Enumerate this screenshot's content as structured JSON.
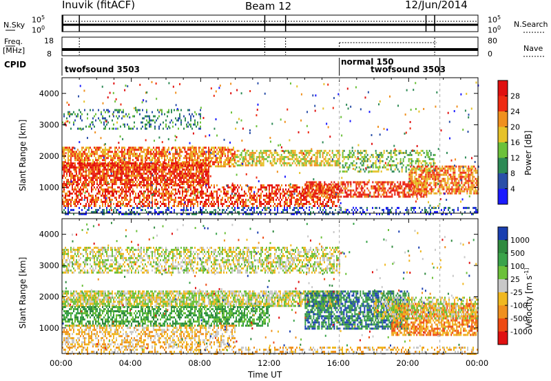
{
  "header": {
    "station": "Inuvik (fitACF)",
    "beam": "Beam 12",
    "date": "12/Jun/2014"
  },
  "top_panels": {
    "nsky_label": "N.Sky",
    "nsky_ticks": [
      "10^5",
      "10^0"
    ],
    "nsearch_label": "N.Search",
    "nsearch_ticks": [
      "10^5",
      "10^0"
    ],
    "freq_label": "Freq.",
    "freq_unit": "[MHz]",
    "freq_ticks": [
      "18",
      "8"
    ],
    "nave_label": "Nave",
    "nave_ticks": [
      "80",
      "0"
    ],
    "cpid_label": "CPID",
    "cpid_segments": [
      {
        "label": "twofsound 3503",
        "start_hour": 0,
        "end_hour": 16
      },
      {
        "label": "normal 150",
        "start_hour": 16,
        "end_hour": 21.8
      },
      {
        "label": "twofsound 3503",
        "start_hour": 21.8,
        "end_hour": 24
      }
    ]
  },
  "x_axis": {
    "label": "Time UT",
    "tick_labels": [
      "00:00",
      "04:00",
      "08:00",
      "12:00",
      "16:00",
      "20:00",
      "00:00"
    ]
  },
  "power_panel": {
    "ylabel": "Slant Range [km]",
    "ytick_labels": [
      "1000",
      "2000",
      "3000",
      "4000"
    ],
    "colorbar_label": "Power [dB]",
    "colorbar_ticks": [
      "4",
      "8",
      "12",
      "16",
      "20",
      "24",
      "28"
    ],
    "colors": [
      "#1a1aff",
      "#2a4fa8",
      "#2d8a55",
      "#6cc13a",
      "#e6c229",
      "#f0901e",
      "#ee2a12",
      "#e01010"
    ]
  },
  "velocity_panel": {
    "ylabel": "Slant Range [km]",
    "ytick_labels": [
      "1000",
      "2000",
      "3000",
      "4000"
    ],
    "colorbar_label": "Velocity [m s^-1]",
    "colorbar_ticks": [
      "1000",
      "500",
      "100",
      "25",
      "-25",
      "-100",
      "-500",
      "-1000"
    ],
    "colors": [
      "#1a3fb0",
      "#2f8a3f",
      "#3aa34a",
      "#6cc13a",
      "#c8c8c8",
      "#f0b820",
      "#f0901e",
      "#ee4a12",
      "#e01010"
    ]
  },
  "chart_data": {
    "type": "heatmap",
    "x_range_hours": [
      0,
      24
    ],
    "y_range_km": [
      180,
      4500
    ],
    "power_scatter_bands": [
      {
        "t_start": 0.0,
        "t_end": 8.0,
        "r_low": 2900,
        "r_high": 3500,
        "density": 0.25,
        "level": 2
      },
      {
        "t_start": 0.0,
        "t_end": 10.0,
        "r_low": 1700,
        "r_high": 2300,
        "density": 0.7,
        "level": 5
      },
      {
        "t_start": 0.0,
        "t_end": 8.5,
        "r_low": 1100,
        "r_high": 1800,
        "density": 0.8,
        "level": 6
      },
      {
        "t_start": 0.0,
        "t_end": 16.0,
        "r_low": 400,
        "r_high": 1100,
        "density": 0.55,
        "level": 6
      },
      {
        "t_start": 10.0,
        "t_end": 16.0,
        "r_low": 1700,
        "r_high": 2200,
        "density": 0.6,
        "level": 4
      },
      {
        "t_start": 14.0,
        "t_end": 21.0,
        "r_low": 700,
        "r_high": 1200,
        "density": 0.6,
        "level": 6
      },
      {
        "t_start": 16.0,
        "t_end": 21.5,
        "r_low": 1500,
        "r_high": 2200,
        "density": 0.4,
        "level": 3
      },
      {
        "t_start": 20.0,
        "t_end": 24.0,
        "r_low": 800,
        "r_high": 1700,
        "density": 0.7,
        "level": 5
      },
      {
        "t_start": 0.0,
        "t_end": 24.0,
        "r_low": 180,
        "r_high": 380,
        "density": 0.35,
        "level": 1
      }
    ],
    "velocity_scatter_bands": [
      {
        "t_start": 0.0,
        "t_end": 16.0,
        "r_low": 2800,
        "r_high": 3600,
        "density": 0.55,
        "level": 4
      },
      {
        "t_start": 0.0,
        "t_end": 16.0,
        "r_low": 1700,
        "r_high": 2200,
        "density": 0.8,
        "level": 4
      },
      {
        "t_start": 0.0,
        "t_end": 12.0,
        "r_low": 1100,
        "r_high": 1700,
        "density": 0.6,
        "level": 2
      },
      {
        "t_start": 0.0,
        "t_end": 10.0,
        "r_low": 400,
        "r_high": 1100,
        "density": 0.5,
        "level": 5
      },
      {
        "t_start": 14.0,
        "t_end": 20.0,
        "r_low": 1000,
        "r_high": 2200,
        "density": 0.7,
        "level": 1
      },
      {
        "t_start": 19.0,
        "t_end": 24.0,
        "r_low": 800,
        "r_high": 1800,
        "density": 0.7,
        "level": 6
      },
      {
        "t_start": 18.0,
        "t_end": 24.0,
        "r_low": 1300,
        "r_high": 2000,
        "density": 0.5,
        "level": 4
      },
      {
        "t_start": 0.0,
        "t_end": 24.0,
        "r_low": 180,
        "r_high": 400,
        "density": 0.35,
        "level": 5
      }
    ]
  }
}
